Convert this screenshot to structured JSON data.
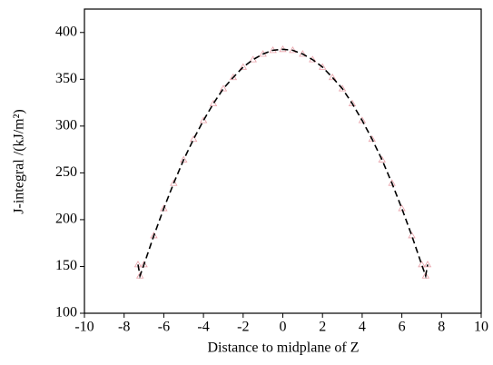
{
  "chart_data": {
    "type": "line",
    "xlabel": "Distance to midplane of Z",
    "ylabel": "J-integral /(kJ/m²)",
    "x": [
      -7.3,
      -7.2,
      -7,
      -6.5,
      -6,
      -5.5,
      -5,
      -4.5,
      -4,
      -3.5,
      -3,
      -2.5,
      -2,
      -1.5,
      -1,
      -0.5,
      0,
      0.5,
      1,
      1.5,
      2,
      2.5,
      3,
      3.5,
      4,
      4.5,
      5,
      5.5,
      6,
      6.5,
      7,
      7.2,
      7.3
    ],
    "series": [
      {
        "color": "#000000",
        "marker_color": "#e8a0a8",
        "dashed": true,
        "values": [
          152,
          140,
          152,
          183,
          212,
          239,
          264,
          286,
          306,
          324,
          340,
          352,
          363,
          371,
          377,
          381,
          382,
          381,
          377,
          371,
          363,
          352,
          340,
          324,
          306,
          286,
          264,
          239,
          212,
          183,
          152,
          140,
          152
        ]
      }
    ],
    "xlim": [
      -10,
      10
    ],
    "xticks": [
      -10,
      -8,
      -6,
      -4,
      -2,
      0,
      2,
      4,
      6,
      8,
      10
    ],
    "ylim": [
      100,
      425
    ],
    "yticks": [
      100,
      150,
      200,
      250,
      300,
      350,
      400
    ],
    "grid": false
  }
}
